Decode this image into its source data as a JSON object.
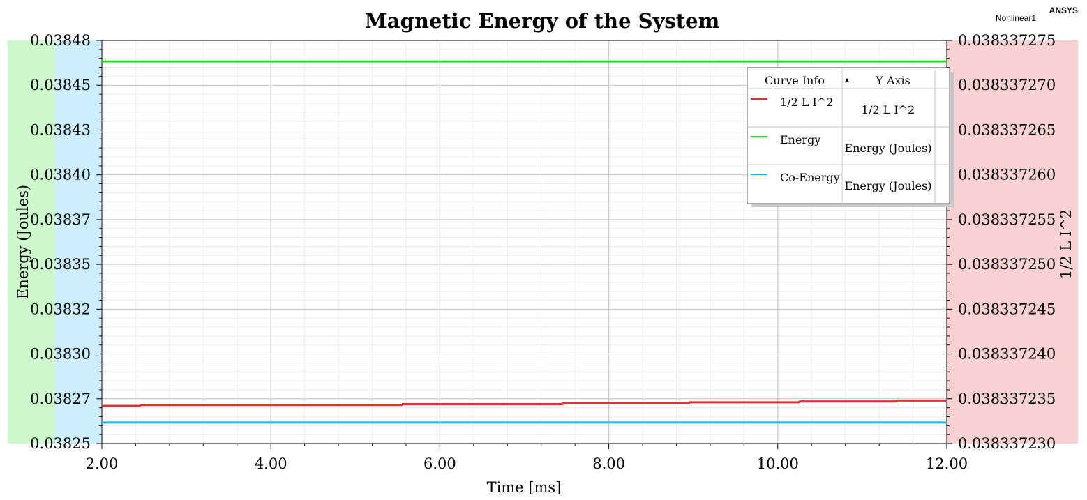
{
  "header": {
    "brand": "ANSYS",
    "design_name": "Nonlinear1"
  },
  "legend": {
    "col_curve": "Curve Info",
    "col_axis": "Y Axis",
    "sort_glyph": "▲",
    "rows": [
      {
        "name": "1/2 L I^2",
        "axis": "1/2 L I^2",
        "color": "#e03030"
      },
      {
        "name": "Energy",
        "axis": "Energy (Joules)",
        "color": "#22e022"
      },
      {
        "name": "Co-Energy",
        "axis": "Energy (Joules)",
        "color": "#20b8e8"
      }
    ]
  },
  "axis_band_colors": {
    "energy": "#ccf8cc",
    "coenergy": "#cceefc",
    "right": "#f8d2d2"
  },
  "chart_data": {
    "type": "line",
    "title": "Magnetic Energy of the System",
    "xlabel": "Time [ms]",
    "ylabel_left": "Energy (Joules)",
    "ylabel_right": "1/2 L I^2",
    "xlim": [
      2.0,
      12.0
    ],
    "ylim_left": [
      0.03825,
      0.03848
    ],
    "ylim_right": [
      0.03833723,
      0.038337275
    ],
    "x_ticks": [
      "2.00",
      "4.00",
      "6.00",
      "8.00",
      "10.00",
      "12.00"
    ],
    "x_tick_values": [
      2,
      4,
      6,
      8,
      10,
      12
    ],
    "y_left_ticks": [
      "0.03825",
      "0.03827",
      "0.03830",
      "0.03832",
      "0.03835",
      "0.03837",
      "0.03840",
      "0.03843",
      "0.03845",
      "0.03848"
    ],
    "y_right_ticks": [
      "0.038337230",
      "0.038337235",
      "0.038337240",
      "0.038337245",
      "0.038337250",
      "0.038337255",
      "0.038337260",
      "0.038337265",
      "0.038337270",
      "0.038337275"
    ],
    "grid": true,
    "series": [
      {
        "name": "1/2 L I^2",
        "axis": "right",
        "color": "#e03030",
        "x": [
          2.0,
          2.45,
          2.46,
          5.55,
          5.56,
          7.45,
          7.46,
          8.95,
          8.96,
          10.25,
          10.26,
          11.4,
          11.41,
          12.0
        ],
        "y": [
          0.0383372342,
          0.0383372342,
          0.0383372343,
          0.0383372343,
          0.0383372344,
          0.0383372344,
          0.0383372345,
          0.0383372345,
          0.0383372346,
          0.0383372346,
          0.0383372347,
          0.0383372347,
          0.0383372348,
          0.0383372348
        ]
      },
      {
        "name": "Energy",
        "axis": "left",
        "color": "#22e022",
        "x": [
          2.0,
          12.0
        ],
        "y": [
          0.038468,
          0.038468
        ]
      },
      {
        "name": "Co-Energy",
        "axis": "left",
        "color": "#20b8e8",
        "x": [
          2.0,
          12.0
        ],
        "y": [
          0.038262,
          0.038262
        ]
      }
    ]
  }
}
